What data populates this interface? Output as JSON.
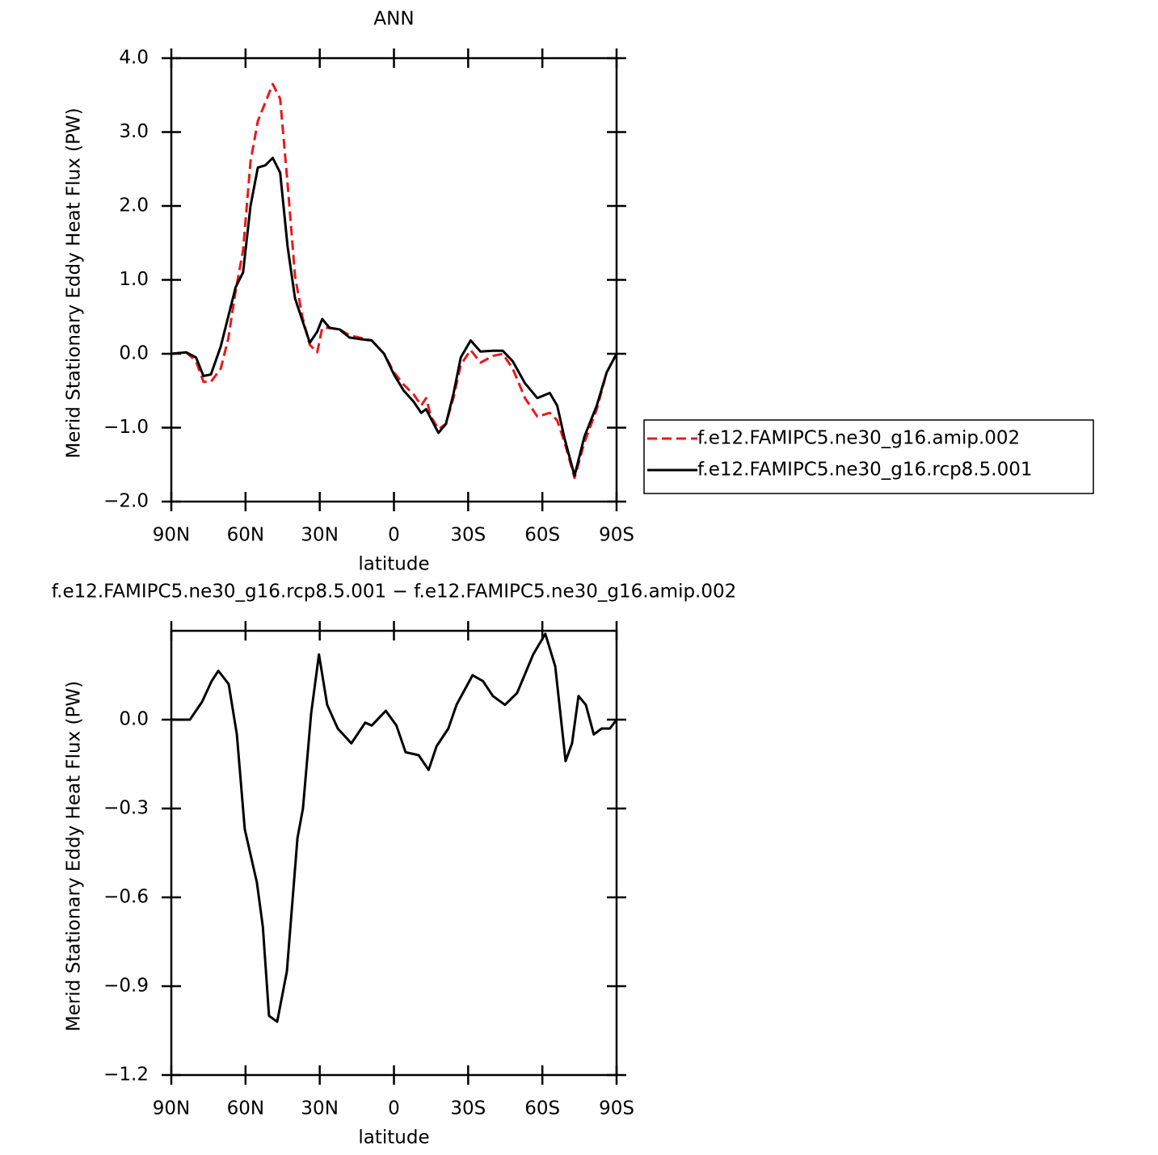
{
  "chart_data": [
    {
      "type": "line",
      "title": "ANN",
      "x_label": "latitude",
      "y_label": "Merid Stationary Eddy Heat Flux (PW)",
      "x": [
        90,
        84,
        80,
        77,
        74,
        70,
        67,
        64,
        61,
        58,
        55,
        52,
        49,
        46,
        43,
        40,
        37,
        34,
        31,
        29,
        26,
        22,
        18,
        14,
        9,
        4,
        0,
        -4,
        -8,
        -11,
        -13,
        -15,
        -18,
        -21,
        -24,
        -27,
        -31,
        -35,
        -40,
        -44,
        -48,
        -53,
        -58,
        -63,
        -66,
        -69,
        -73,
        -77,
        -82,
        -86,
        -90
      ],
      "series": [
        {
          "name": "f.e12.FAMIPC5.ne30_g16.amip.002",
          "color": "#e8191b",
          "line_style": "dashed",
          "values": [
            0,
            0.02,
            -0.1,
            -0.38,
            -0.38,
            -0.2,
            0.2,
            0.85,
            1.4,
            2.6,
            3.15,
            3.4,
            3.65,
            3.45,
            2.3,
            1.05,
            0.5,
            0.12,
            0.02,
            0.35,
            0.35,
            0.33,
            0.25,
            0.22,
            0.18,
            0,
            -0.25,
            -0.42,
            -0.55,
            -0.7,
            -0.6,
            -0.85,
            -1.02,
            -0.95,
            -0.6,
            -0.15,
            0.05,
            -0.12,
            -0.03,
            0,
            -0.2,
            -0.6,
            -0.85,
            -0.8,
            -0.9,
            -1.2,
            -1.68,
            -1.2,
            -0.75,
            -0.25,
            0
          ]
        },
        {
          "name": "f.e12.FAMIPC5.ne30_g16.rcp8.5.001",
          "color": "#000000",
          "line_style": "solid",
          "values": [
            0,
            0.02,
            -0.05,
            -0.3,
            -0.28,
            0.1,
            0.5,
            0.9,
            1.1,
            2.0,
            2.52,
            2.55,
            2.65,
            2.45,
            1.45,
            0.75,
            0.45,
            0.15,
            0.3,
            0.47,
            0.35,
            0.33,
            0.22,
            0.2,
            0.18,
            0,
            -0.28,
            -0.5,
            -0.65,
            -0.8,
            -0.75,
            -0.88,
            -1.07,
            -0.95,
            -0.55,
            -0.05,
            0.18,
            0.03,
            0.04,
            0.04,
            -0.1,
            -0.4,
            -0.6,
            -0.53,
            -0.7,
            -1.15,
            -1.65,
            -1.12,
            -0.7,
            -0.25,
            0
          ]
        }
      ],
      "xlim": [
        90,
        -90
      ],
      "ylim": [
        -2,
        4
      ],
      "xticks": [
        {
          "value": 90,
          "label": "90N"
        },
        {
          "value": 60,
          "label": "60N"
        },
        {
          "value": 30,
          "label": "30N"
        },
        0,
        {
          "value": -30,
          "label": "30S"
        },
        {
          "value": -60,
          "label": "60S"
        },
        {
          "value": -90,
          "label": "90S"
        }
      ],
      "yticks": [
        {
          "value": -2,
          "label": "−2.0"
        },
        {
          "value": -1,
          "label": "−1.0"
        },
        {
          "value": 0,
          "label": "0.0"
        },
        {
          "value": 1,
          "label": "1.0"
        },
        {
          "value": 2,
          "label": "2.0"
        },
        {
          "value": 3,
          "label": "3.0"
        },
        {
          "value": 4,
          "label": "4.0"
        }
      ],
      "legend": "right"
    },
    {
      "type": "line",
      "title": "f.e12.FAMIPC5.ne30_g16.rcp8.5.001 − f.e12.FAMIPC5.ne30_g16.amip.002",
      "x_label": "latitude",
      "y_label": "Merid Stationary Eddy Heat Flux (PW)",
      "x": [
        90,
        82.5,
        77.6,
        73.7,
        71,
        66.8,
        63.5,
        60.3,
        55.4,
        53,
        50.5,
        47.2,
        43.3,
        39,
        36.8,
        33.5,
        30.3,
        27,
        22.7,
        17.2,
        11.6,
        9,
        3.3,
        -1,
        -4.7,
        -10,
        -14,
        -17.2,
        -22,
        -25.3,
        -31.8,
        -36,
        -40,
        -44.9,
        -49.8,
        -56.3,
        -61.2,
        -65.2,
        -69.4,
        -72,
        -74.6,
        -77.6,
        -80.8,
        -84,
        -87.3,
        -90
      ],
      "series": [
        {
          "color": "#000000",
          "line_style": "solid",
          "values": [
            0,
            0,
            0.06,
            0.13,
            0.165,
            0.12,
            -0.05,
            -0.37,
            -0.55,
            -0.7,
            -1.0,
            -1.02,
            -0.85,
            -0.4,
            -0.3,
            0.02,
            0.22,
            0.05,
            -0.03,
            -0.08,
            -0.01,
            -0.02,
            0.03,
            -0.02,
            -0.11,
            -0.12,
            -0.17,
            -0.09,
            -0.03,
            0.05,
            0.15,
            0.13,
            0.08,
            0.05,
            0.09,
            0.22,
            0.29,
            0.18,
            -0.14,
            -0.08,
            0.08,
            0.05,
            -0.05,
            -0.03,
            -0.03,
            0
          ]
        }
      ],
      "xlim": [
        90,
        -90
      ],
      "ylim": [
        -1.2,
        0.3
      ],
      "xticks": [
        {
          "value": 90,
          "label": "90N"
        },
        {
          "value": 60,
          "label": "60N"
        },
        {
          "value": 30,
          "label": "30N"
        },
        0,
        {
          "value": -30,
          "label": "30S"
        },
        {
          "value": -60,
          "label": "60S"
        },
        {
          "value": -90,
          "label": "90S"
        }
      ],
      "yticks": [
        {
          "value": -1.2,
          "label": "−1.2"
        },
        {
          "value": -0.9,
          "label": "−0.9"
        },
        {
          "value": -0.6,
          "label": "−0.6"
        },
        {
          "value": -0.3,
          "label": "−0.3"
        },
        {
          "value": 0,
          "label": "0.0"
        }
      ]
    }
  ]
}
